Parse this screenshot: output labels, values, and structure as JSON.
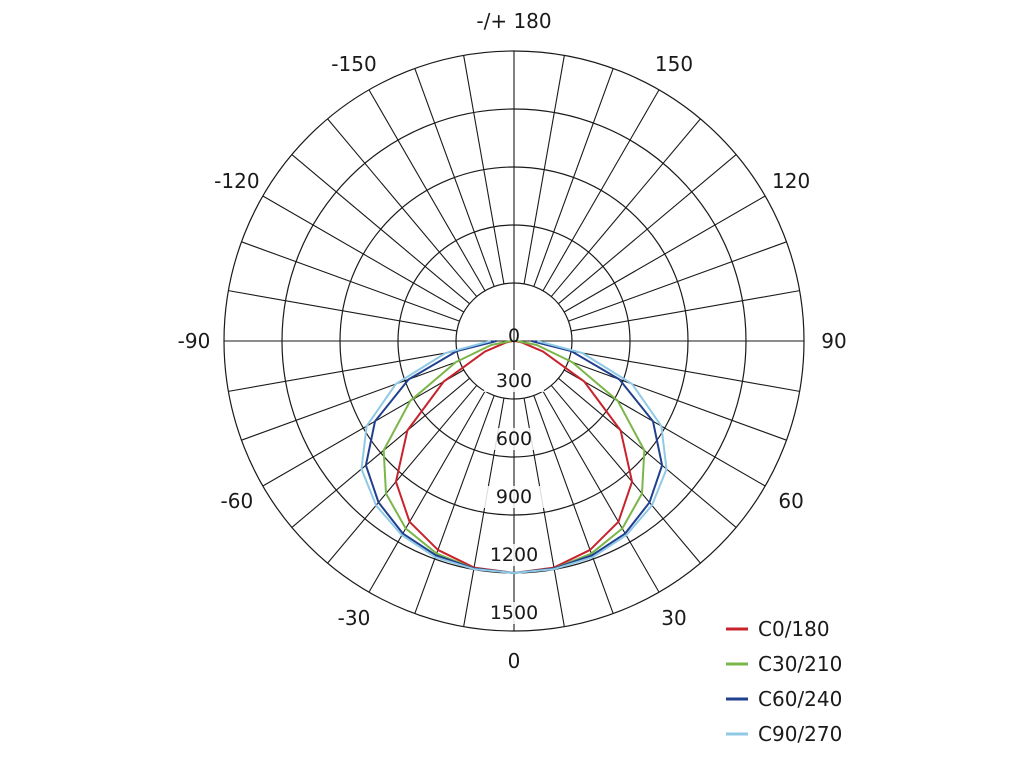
{
  "chart_data": {
    "type": "polar",
    "title": "",
    "angle_labels": [
      {
        "angle": 0,
        "text": "0"
      },
      {
        "angle": 30,
        "text": "30"
      },
      {
        "angle": 60,
        "text": "60"
      },
      {
        "angle": 90,
        "text": "90"
      },
      {
        "angle": 120,
        "text": "120"
      },
      {
        "angle": 150,
        "text": "150"
      },
      {
        "angle": 180,
        "text": "-/+ 180"
      },
      {
        "angle": -150,
        "text": "-150"
      },
      {
        "angle": -120,
        "text": "-120"
      },
      {
        "angle": -90,
        "text": "-90"
      },
      {
        "angle": -60,
        "text": "-60"
      },
      {
        "angle": -30,
        "text": "-30"
      }
    ],
    "radial_ticks": [
      300,
      600,
      900,
      1200,
      1500
    ],
    "radial_tick_labels": [
      "300",
      "600",
      "900",
      "1200",
      "1500"
    ],
    "center_label": "0",
    "r_max": 1500,
    "angular_grid_step": 10,
    "grid": true,
    "legend_position": "bottom-right",
    "series": [
      {
        "name": "C0/180",
        "color": "#c8232c",
        "angles": [
          -90,
          -80,
          -70,
          -60,
          -50,
          -40,
          -30,
          -20,
          -10,
          0,
          10,
          20,
          30,
          40,
          50,
          60,
          70,
          80,
          90
        ],
        "values": [
          5,
          40,
          160,
          420,
          720,
          950,
          1080,
          1150,
          1190,
          1200,
          1190,
          1150,
          1080,
          950,
          720,
          420,
          160,
          40,
          5
        ]
      },
      {
        "name": "C30/210",
        "color": "#7ab648",
        "angles": [
          -90,
          -80,
          -70,
          -60,
          -50,
          -40,
          -30,
          -20,
          -10,
          0,
          10,
          20,
          30,
          40,
          50,
          60,
          70,
          80,
          90
        ],
        "values": [
          15,
          120,
          320,
          620,
          880,
          1030,
          1120,
          1170,
          1195,
          1200,
          1195,
          1170,
          1120,
          1030,
          880,
          620,
          320,
          120,
          15
        ]
      },
      {
        "name": "C60/240",
        "color": "#1f3f8f",
        "angles": [
          -90,
          -80,
          -70,
          -60,
          -50,
          -40,
          -30,
          -20,
          -10,
          0,
          10,
          20,
          30,
          40,
          50,
          60,
          70,
          80,
          90
        ],
        "values": [
          90,
          300,
          580,
          830,
          1000,
          1090,
          1150,
          1180,
          1195,
          1200,
          1195,
          1180,
          1150,
          1090,
          1000,
          830,
          580,
          300,
          90
        ]
      },
      {
        "name": "C90/270",
        "color": "#8fc9e6",
        "angles": [
          -90,
          -80,
          -70,
          -60,
          -50,
          -40,
          -30,
          -20,
          -10,
          0,
          10,
          20,
          30,
          40,
          50,
          60,
          70,
          80,
          90
        ],
        "values": [
          120,
          360,
          650,
          880,
          1030,
          1110,
          1160,
          1190,
          1198,
          1200,
          1198,
          1190,
          1160,
          1110,
          1030,
          880,
          650,
          360,
          120
        ]
      }
    ]
  }
}
